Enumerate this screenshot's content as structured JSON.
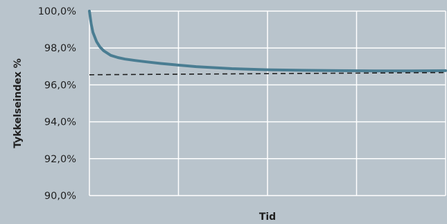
{
  "chart_data": {
    "type": "line",
    "title": "",
    "xlabel": "Tid",
    "ylabel": "Tykkelseindex %",
    "ylim": [
      90,
      100
    ],
    "yticks": [
      "90,0%",
      "92,0%",
      "94,0%",
      "96,0%",
      "98,0%",
      "100,0%"
    ],
    "ytick_values": [
      90,
      92,
      94,
      96,
      98,
      100
    ],
    "xlim": [
      0,
      100
    ],
    "x_vertical_gridlines": 4,
    "grid": true,
    "legend": "none",
    "series": [
      {
        "style": "solid",
        "color": "#4a7d92",
        "x": [
          0,
          0.5,
          1,
          2,
          3,
          4,
          6,
          8,
          10,
          13,
          16,
          20,
          25,
          30,
          40,
          50,
          60,
          70,
          80,
          90,
          100
        ],
        "values": [
          100.0,
          99.3,
          98.85,
          98.35,
          98.05,
          97.85,
          97.6,
          97.48,
          97.4,
          97.32,
          97.25,
          97.16,
          97.07,
          96.99,
          96.88,
          96.82,
          96.79,
          96.77,
          96.76,
          96.76,
          96.77
        ]
      },
      {
        "style": "dashed",
        "color": "#1f1f1f",
        "x": [
          0,
          100
        ],
        "values": [
          96.55,
          96.67
        ]
      }
    ]
  }
}
